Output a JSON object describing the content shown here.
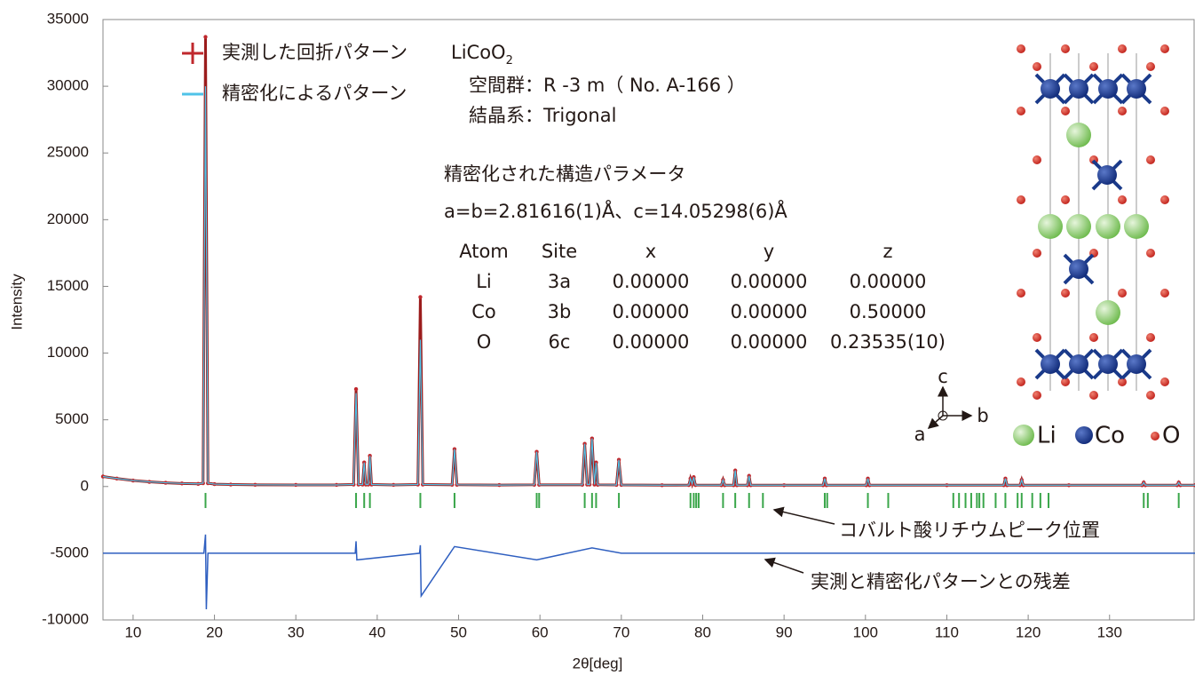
{
  "chart_data": {
    "type": "line",
    "x_label": "2θ[deg]",
    "y_label": "Intensity",
    "xlim": [
      6.3,
      140.5
    ],
    "ylim": [
      -10000,
      35000
    ],
    "xticks": [
      10,
      20,
      30,
      40,
      50,
      60,
      70,
      80,
      90,
      100,
      110,
      120,
      130
    ],
    "yticks": [
      -10000,
      -5000,
      0,
      5000,
      10000,
      15000,
      20000,
      25000,
      30000,
      35000
    ],
    "x": [
      6.3,
      8,
      10,
      12,
      14,
      16,
      18,
      18.6,
      18.9,
      19.2,
      20,
      22,
      25,
      30,
      35,
      37.1,
      37.4,
      37.7,
      38.2,
      38.4,
      38.6,
      38.9,
      39.1,
      39.3,
      42,
      45.0,
      45.3,
      45.6,
      49.2,
      49.5,
      49.8,
      55,
      59.3,
      59.6,
      59.9,
      65.2,
      65.5,
      65.8,
      66.1,
      66.4,
      66.7,
      66.9,
      67.1,
      69.4,
      69.7,
      70.0,
      75,
      78.3,
      78.5,
      78.7,
      78.9,
      79.1,
      82.3,
      82.5,
      82.7,
      83.8,
      84.0,
      84.2,
      85.5,
      85.7,
      85.9,
      90,
      94.8,
      95.0,
      95.2,
      100.1,
      100.3,
      100.5,
      110,
      117.0,
      117.2,
      117.4,
      119.0,
      119.2,
      119.4,
      125,
      134.0,
      134.2,
      134.4,
      138.3,
      138.5,
      138.7,
      140.5
    ],
    "series": [
      {
        "name": "実測した回折パターン",
        "color": "#c0282d",
        "marker": "+",
        "values": [
          750,
          600,
          450,
          350,
          280,
          230,
          200,
          250,
          33700,
          250,
          180,
          150,
          130,
          120,
          120,
          150,
          7300,
          150,
          150,
          1800,
          150,
          150,
          2300,
          150,
          120,
          150,
          14200,
          150,
          130,
          2800,
          130,
          110,
          130,
          2600,
          130,
          130,
          3200,
          150,
          150,
          3600,
          150,
          1800,
          130,
          120,
          2000,
          120,
          100,
          110,
          600,
          200,
          700,
          110,
          100,
          500,
          100,
          100,
          1200,
          100,
          100,
          800,
          100,
          100,
          100,
          600,
          100,
          100,
          600,
          100,
          100,
          100,
          600,
          100,
          100,
          500,
          100,
          100,
          100,
          300,
          100,
          100,
          300,
          100,
          100
        ]
      },
      {
        "name": "精密化によるパターン",
        "color": "#4fc3e8",
        "marker": "line",
        "values": [
          750,
          600,
          450,
          350,
          280,
          230,
          200,
          250,
          30000,
          250,
          180,
          150,
          130,
          120,
          120,
          150,
          7000,
          150,
          150,
          1800,
          150,
          150,
          2300,
          150,
          120,
          150,
          11000,
          150,
          130,
          2800,
          130,
          110,
          130,
          2600,
          130,
          130,
          3200,
          150,
          150,
          3600,
          150,
          1800,
          130,
          120,
          2000,
          120,
          100,
          110,
          600,
          200,
          700,
          110,
          100,
          500,
          100,
          100,
          1200,
          100,
          100,
          800,
          100,
          100,
          100,
          600,
          100,
          100,
          600,
          100,
          100,
          100,
          600,
          100,
          100,
          500,
          100,
          100,
          100,
          300,
          100,
          100,
          300,
          100,
          100
        ]
      }
    ],
    "difference": {
      "name": "実測と精密化パターンとの残差",
      "color": "#2f5fc0",
      "x": [
        6.3,
        18.7,
        18.9,
        19.0,
        19.2,
        37.3,
        37.4,
        37.5,
        45.2,
        45.3,
        45.4,
        49.5,
        59.6,
        66.4,
        70,
        80,
        100,
        120,
        140.5
      ],
      "values": [
        -5000,
        -5000,
        -3600,
        -9200,
        -5000,
        -5000,
        -4100,
        -5500,
        -5000,
        -4400,
        -8200,
        -4500,
        -5500,
        -4600,
        -5000,
        -5000,
        -5000,
        -5000,
        -5000
      ]
    },
    "reflections": {
      "name": "コバルト酸リチウムピーク位置",
      "color": "#3aa64a",
      "positions": [
        18.9,
        37.4,
        38.4,
        39.1,
        45.3,
        49.5,
        59.6,
        59.9,
        65.5,
        66.4,
        66.9,
        69.7,
        78.5,
        78.9,
        79.2,
        79.5,
        82.5,
        84.0,
        85.7,
        87.4,
        95.0,
        95.3,
        100.3,
        102.8,
        110.8,
        111.5,
        112.3,
        113.0,
        113.7,
        114.0,
        114.5,
        116.0,
        117.2,
        118.7,
        119.2,
        120.5,
        121.5,
        122.5,
        134.2,
        134.7,
        138.5
      ]
    },
    "annotations": {
      "formula": "LiCoO",
      "formula_subscript": "2",
      "space_group": "空間群：R -3 m（ No. A-166 ）",
      "crystal_system": "結晶系：Trigonal",
      "params_title": "精密化された構造パラメータ",
      "lattice": "a=b=2.81616(1)Å、c=14.05298(6)Å"
    },
    "table": {
      "header": [
        "Atom",
        "Site",
        "x",
        "y",
        "z"
      ],
      "rows": [
        [
          "Li",
          "3a",
          "0.00000",
          "0.00000",
          "0.00000"
        ],
        [
          "Co",
          "3b",
          "0.00000",
          "0.00000",
          "0.50000"
        ],
        [
          "O",
          "6c",
          "0.00000",
          "0.00000",
          "0.23535(10)"
        ]
      ]
    },
    "structure_legend": [
      "Li",
      "Co",
      "O"
    ],
    "axes_labels": [
      "a",
      "b",
      "c"
    ]
  }
}
